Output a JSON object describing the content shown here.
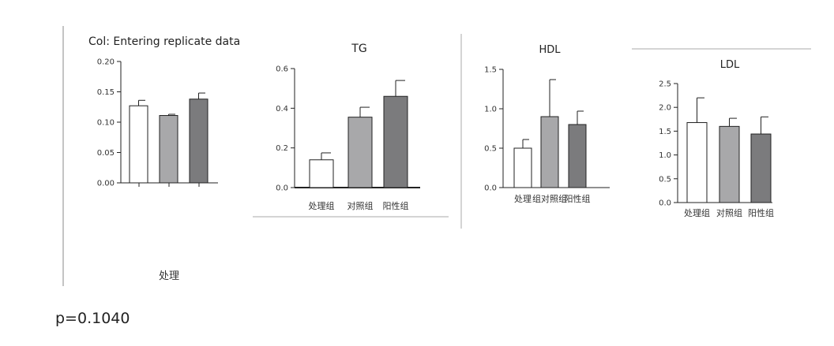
{
  "footer": {
    "p_value": "p=0.1040",
    "bottom_category": "处理"
  },
  "chart_data": [
    {
      "type": "bar",
      "title": "Col: Entering replicate data",
      "categories": [
        "",
        "",
        ""
      ],
      "values": [
        0.127,
        0.111,
        0.138
      ],
      "errors": [
        0.009,
        0.002,
        0.01
      ],
      "ylim": [
        0,
        0.2
      ],
      "yticks": [
        0.0,
        0.05,
        0.1,
        0.15,
        0.2
      ],
      "ytick_labels": [
        "0.00",
        "0.05",
        "0.10",
        "0.15",
        "0.20"
      ],
      "colors": [
        "#ffffff",
        "#a8a8aa",
        "#7b7b7d"
      ]
    },
    {
      "type": "bar",
      "title": "TG",
      "categories": [
        "处理组",
        "对照组",
        "阳性组"
      ],
      "values": [
        0.14,
        0.355,
        0.46
      ],
      "errors": [
        0.035,
        0.05,
        0.08
      ],
      "ylim": [
        0,
        0.6
      ],
      "yticks": [
        0.0,
        0.2,
        0.4,
        0.6
      ],
      "ytick_labels": [
        "0.0",
        "0.2",
        "0.4",
        "0.6"
      ],
      "colors": [
        "#ffffff",
        "#a8a8aa",
        "#7b7b7d"
      ]
    },
    {
      "type": "bar",
      "title": "HDL",
      "categories": [
        "处理",
        "组对照组",
        "阳性组"
      ],
      "values": [
        0.5,
        0.9,
        0.8
      ],
      "errors": [
        0.11,
        0.47,
        0.17
      ],
      "ylim": [
        0,
        1.5
      ],
      "yticks": [
        0.0,
        0.5,
        1.0,
        1.5
      ],
      "ytick_labels": [
        "0.0",
        "0.5",
        "1.0",
        "1.5"
      ],
      "colors": [
        "#ffffff",
        "#a8a8aa",
        "#7b7b7d"
      ]
    },
    {
      "type": "bar",
      "title": "LDL",
      "categories": [
        "处理组",
        "对照组",
        "阳性组"
      ],
      "values": [
        1.68,
        1.6,
        1.44
      ],
      "errors": [
        0.52,
        0.17,
        0.36
      ],
      "ylim": [
        0,
        2.5
      ],
      "yticks": [
        0.0,
        0.5,
        1.0,
        1.5,
        2.0,
        2.5
      ],
      "ytick_labels": [
        "0.0",
        "0.5",
        "1.0",
        "1.5",
        "2.0",
        "2.5"
      ],
      "colors": [
        "#ffffff",
        "#a8a8aa",
        "#7b7b7d"
      ]
    }
  ]
}
